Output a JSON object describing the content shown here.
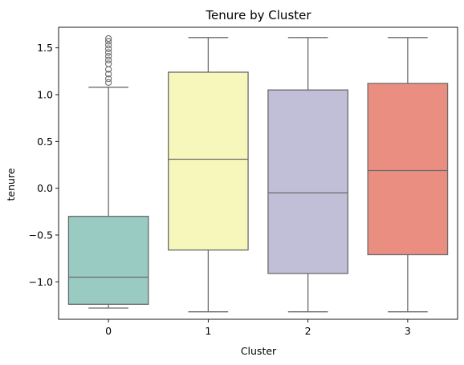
{
  "chart_data": {
    "type": "box",
    "title": "Tenure by Cluster",
    "xlabel": "Cluster",
    "ylabel": "tenure",
    "categories": [
      "0",
      "1",
      "2",
      "3"
    ],
    "ylim": [
      -1.4,
      1.72
    ],
    "yticks": [
      -1.0,
      -0.5,
      0.0,
      0.5,
      1.0,
      1.5
    ],
    "ytick_labels": [
      "−1.0",
      "−0.5",
      "0.0",
      "0.5",
      "1.0",
      "1.5"
    ],
    "grid": false,
    "boxes": [
      {
        "category": "0",
        "color": "#99cbc3",
        "whisker_low": -1.28,
        "q1": -1.24,
        "median": -0.95,
        "q3": -0.3,
        "whisker_high": 1.08,
        "outliers": [
          1.13,
          1.17,
          1.22,
          1.27,
          1.33,
          1.37,
          1.41,
          1.45,
          1.49,
          1.53,
          1.57,
          1.6
        ]
      },
      {
        "category": "1",
        "color": "#f7f7bb",
        "whisker_low": -1.32,
        "q1": -0.66,
        "median": 0.31,
        "q3": 1.24,
        "whisker_high": 1.61,
        "outliers": []
      },
      {
        "category": "2",
        "color": "#c1bfd8",
        "whisker_low": -1.32,
        "q1": -0.91,
        "median": -0.05,
        "q3": 1.05,
        "whisker_high": 1.61,
        "outliers": []
      },
      {
        "category": "3",
        "color": "#eb8e82",
        "whisker_low": -1.32,
        "q1": -0.71,
        "median": 0.19,
        "q3": 1.12,
        "whisker_high": 1.61,
        "outliers": []
      }
    ]
  }
}
